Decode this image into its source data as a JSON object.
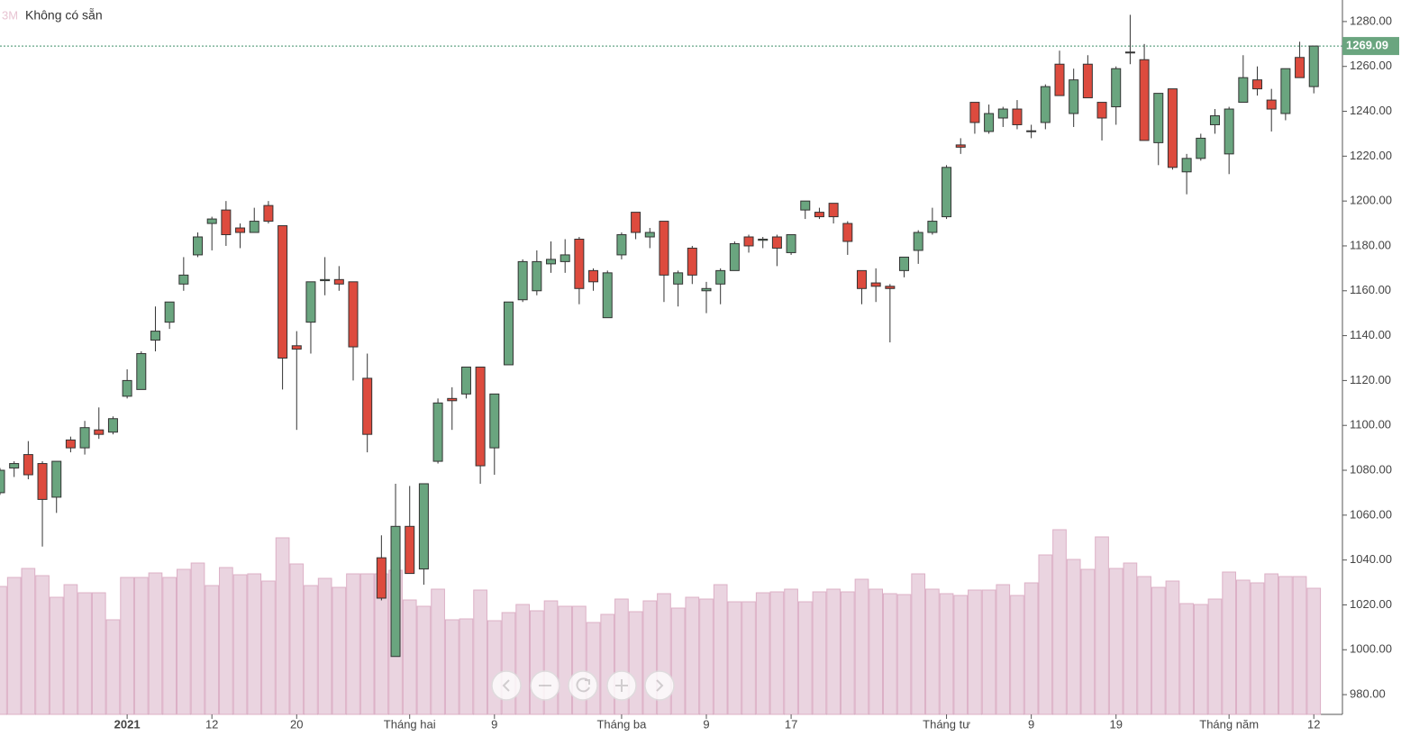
{
  "chart_data": {
    "type": "candlestick",
    "interval": "3M",
    "status": "Không có sẵn",
    "categories": [
      null,
      null,
      null,
      null,
      null,
      null,
      null,
      null,
      null,
      "2021",
      null,
      null,
      null,
      null,
      null,
      "12",
      null,
      null,
      null,
      null,
      null,
      "20",
      null,
      null,
      null,
      null,
      null,
      null,
      null,
      "Tháng hai",
      null,
      null,
      null,
      null,
      null,
      "9",
      null,
      null,
      null,
      null,
      null,
      null,
      null,
      null,
      "Tháng ba",
      null,
      null,
      null,
      null,
      null,
      "9",
      null,
      null,
      null,
      null,
      null,
      "17",
      null,
      null,
      null,
      null,
      null,
      null,
      null,
      null,
      null,
      null,
      "Tháng tư",
      null,
      null,
      null,
      null,
      null,
      "9",
      null,
      null,
      null,
      null,
      null,
      "19",
      null,
      null,
      null,
      null,
      null,
      null,
      null,
      "Tháng năm",
      null,
      null,
      null,
      null,
      null,
      "12"
    ],
    "open": [
      1070,
      1081,
      1087,
      1083,
      1068,
      1093.5,
      1090,
      1098,
      1097,
      1113,
      1116,
      1138,
      1146,
      1163,
      1176,
      1190,
      1196,
      1188,
      1186,
      1198,
      1189,
      1135.5,
      1146,
      1164.5,
      1165,
      1164,
      1121,
      1041,
      997,
      1055,
      1036,
      1084,
      1112,
      1114,
      1126,
      1090,
      1127,
      1156,
      1160,
      1172,
      1173,
      1183,
      1169,
      1148,
      1176,
      1195,
      1184,
      1191,
      1163,
      1179,
      1160,
      1163,
      1169,
      1184,
      1182.5,
      1184,
      1177,
      1196,
      1195,
      1199,
      1190,
      1169,
      1163.5,
      1162,
      1169,
      1178,
      1186,
      1193,
      1225,
      1244,
      1231,
      1237,
      1241,
      1231,
      1235,
      1261,
      1239,
      1261,
      1244,
      1242,
      1266,
      1263,
      1226,
      1250,
      1213,
      1219,
      1234,
      1221,
      1244,
      1254,
      1245,
      1239,
      1264,
      1251
    ],
    "high": [
      1081,
      1084,
      1093,
      1084,
      1084,
      1095,
      1102,
      1108,
      1104,
      1125,
      1133,
      1153,
      1155,
      1175,
      1186,
      1193,
      1200,
      1190,
      1197,
      1200,
      1189,
      1142,
      1164,
      1175,
      1171,
      1164,
      1132,
      1051,
      1074,
      1073,
      1074,
      1112,
      1117,
      1126,
      1126,
      1114,
      1155,
      1174,
      1178,
      1182,
      1183,
      1184,
      1170,
      1169,
      1186,
      1195,
      1188,
      1191,
      1169,
      1180,
      1164,
      1170,
      1182,
      1185,
      1184,
      1185,
      1185,
      1200,
      1197,
      1199,
      1191,
      1169,
      1170,
      1163,
      1175,
      1187,
      1197,
      1216,
      1228,
      1244,
      1243,
      1242,
      1245,
      1234,
      1252,
      1267,
      1259,
      1265,
      1244,
      1260,
      1283,
      1270,
      1248,
      1250,
      1221,
      1230,
      1241,
      1242,
      1265,
      1260,
      1250,
      1259,
      1271,
      1269.09
    ],
    "low": [
      1069,
      1077,
      1076,
      1046,
      1061,
      1088,
      1087,
      1094,
      1096,
      1112,
      1116,
      1133,
      1143,
      1160,
      1175,
      1178,
      1180,
      1179,
      1186,
      1190,
      1116,
      1098,
      1132,
      1158,
      1160,
      1120,
      1088,
      1022,
      997,
      1034,
      1029,
      1083,
      1098,
      1112,
      1074,
      1078,
      1127,
      1155,
      1158,
      1168,
      1168,
      1154,
      1160,
      1148,
      1174,
      1183,
      1179,
      1155,
      1153,
      1163,
      1150,
      1154,
      1169,
      1177,
      1179,
      1171,
      1176,
      1192,
      1192,
      1190,
      1176,
      1154,
      1155,
      1137,
      1166,
      1172,
      1185,
      1192,
      1221,
      1230,
      1230,
      1233,
      1232,
      1228,
      1232,
      1247,
      1233,
      1246,
      1227,
      1234,
      1261,
      1227,
      1216,
      1214,
      1203,
      1218,
      1230,
      1212,
      1244,
      1247,
      1231,
      1236,
      1255,
      1248
    ],
    "close": [
      1080,
      1083,
      1078,
      1067,
      1084,
      1090,
      1099,
      1096,
      1103,
      1120,
      1132,
      1142,
      1155,
      1167,
      1184,
      1192,
      1185,
      1186,
      1191,
      1191,
      1130,
      1134,
      1164,
      1165,
      1163,
      1135,
      1096,
      1023,
      1055,
      1034,
      1074,
      1110,
      1111,
      1126,
      1082,
      1114,
      1155,
      1173,
      1173,
      1174,
      1176,
      1161,
      1164,
      1168,
      1185,
      1186,
      1186,
      1167,
      1168,
      1167,
      1161,
      1169,
      1181,
      1180,
      1183,
      1179,
      1185,
      1200,
      1193,
      1193,
      1182,
      1161,
      1162,
      1161,
      1175,
      1186,
      1191,
      1215,
      1224,
      1235,
      1239,
      1241,
      1234,
      1231.3,
      1251,
      1247,
      1254,
      1246,
      1237,
      1259,
      1266.4,
      1227,
      1248,
      1215,
      1219,
      1228,
      1238,
      1241,
      1255,
      1250,
      1241,
      1259,
      1255,
      1269.09
    ],
    "volume": [
      142,
      152,
      162,
      154,
      130,
      144,
      135,
      135,
      105,
      152,
      152,
      157,
      152,
      161,
      168,
      143,
      163,
      155,
      156,
      148,
      196,
      167,
      143,
      151,
      141,
      156,
      156,
      156,
      160,
      127,
      120,
      139,
      105,
      106,
      138,
      104,
      113,
      122,
      115,
      126,
      120,
      120,
      102,
      111,
      128,
      114,
      126,
      134,
      118,
      130,
      128,
      144,
      125,
      125,
      135,
      136,
      139,
      125,
      136,
      139,
      136,
      150,
      139,
      134,
      133,
      156,
      139,
      134,
      132,
      138,
      138,
      144,
      132,
      146,
      177,
      205,
      172,
      161,
      197,
      162,
      168,
      153,
      141,
      148,
      123,
      122,
      128,
      158,
      149,
      146,
      156,
      153,
      153,
      140
    ],
    "up_color": "#6aa57f",
    "down_color": "#dd4b3e",
    "volume_color": "#ead4e0",
    "ylim": [
      971.2,
      1289.6
    ],
    "yticks": [
      {
        "value": 980,
        "label": "980.00"
      },
      {
        "value": 1000,
        "label": "1000.00"
      },
      {
        "value": 1020,
        "label": "1020.00"
      },
      {
        "value": 1040,
        "label": "1040.00"
      },
      {
        "value": 1060,
        "label": "1060.00"
      },
      {
        "value": 1080,
        "label": "1080.00"
      },
      {
        "value": 1100,
        "label": "1100.00"
      },
      {
        "value": 1120,
        "label": "1120.00"
      },
      {
        "value": 1140,
        "label": "1140.00"
      },
      {
        "value": 1160,
        "label": "1160.00"
      },
      {
        "value": 1180,
        "label": "1180.00"
      },
      {
        "value": 1200,
        "label": "1200.00"
      },
      {
        "value": 1220,
        "label": "1220.00"
      },
      {
        "value": 1240,
        "label": "1240.00"
      },
      {
        "value": 1260,
        "label": "1260.00"
      },
      {
        "value": 1280,
        "label": "1280.00"
      }
    ],
    "grid": false
  }
}
